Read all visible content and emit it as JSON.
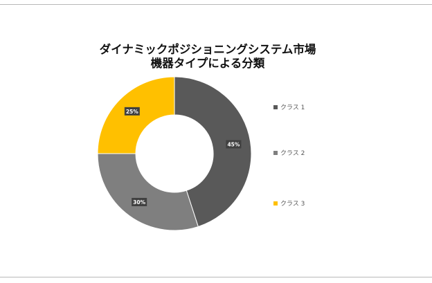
{
  "chart_data": {
    "type": "pie",
    "title_lines": [
      "ダイナミックポジショニングシステム市場",
      "機器タイプによる分類"
    ],
    "categories": [
      "クラス 1",
      "クラス 2",
      "クラス 3"
    ],
    "values": [
      45,
      30,
      25
    ],
    "labels": [
      "45%",
      "30%",
      "25%"
    ],
    "colors": [
      "#595959",
      "#7f7f7f",
      "#ffc000"
    ],
    "donut": true,
    "legend_position": "right"
  }
}
